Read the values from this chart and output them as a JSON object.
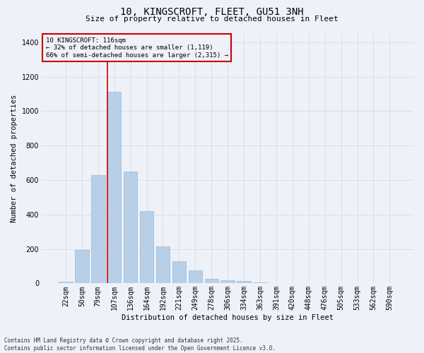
{
  "title_line1": "10, KINGSCROFT, FLEET, GU51 3NH",
  "title_line2": "Size of property relative to detached houses in Fleet",
  "xlabel": "Distribution of detached houses by size in Fleet",
  "ylabel": "Number of detached properties",
  "categories": [
    "22sqm",
    "50sqm",
    "79sqm",
    "107sqm",
    "136sqm",
    "164sqm",
    "192sqm",
    "221sqm",
    "249sqm",
    "278sqm",
    "306sqm",
    "334sqm",
    "363sqm",
    "391sqm",
    "420sqm",
    "448sqm",
    "476sqm",
    "505sqm",
    "533sqm",
    "562sqm",
    "590sqm"
  ],
  "values": [
    10,
    195,
    630,
    1110,
    650,
    420,
    215,
    130,
    75,
    25,
    20,
    15,
    5,
    3,
    2,
    1,
    1,
    0,
    0,
    0,
    0
  ],
  "bar_color": "#b8cfe8",
  "bar_edge_color": "#9ab8d8",
  "grid_color": "#d4dce8",
  "vline_color": "#cc0000",
  "vline_index": 3,
  "ylim": [
    0,
    1450
  ],
  "yticks": [
    0,
    200,
    400,
    600,
    800,
    1000,
    1200,
    1400
  ],
  "annotation_text": "10 KINGSCROFT: 116sqm\n← 32% of detached houses are smaller (1,119)\n66% of semi-detached houses are larger (2,315) →",
  "annotation_box_facecolor": "#eef2f8",
  "annotation_box_edgecolor": "#cc0000",
  "footer_line1": "Contains HM Land Registry data © Crown copyright and database right 2025.",
  "footer_line2": "Contains public sector information licensed under the Open Government Licence v3.0.",
  "background_color": "#eef2f8",
  "title_fontsize": 10,
  "subtitle_fontsize": 8,
  "tick_fontsize": 7,
  "ylabel_fontsize": 7.5,
  "xlabel_fontsize": 7.5,
  "footer_fontsize": 5.5,
  "annotation_fontsize": 6.5
}
